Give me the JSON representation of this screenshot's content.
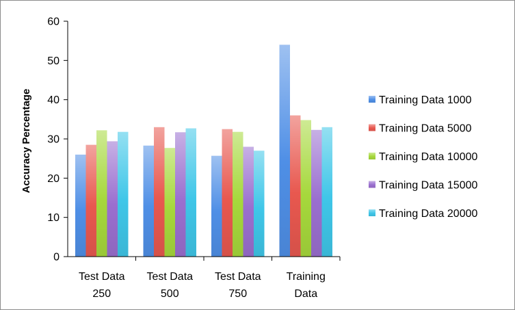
{
  "chart_data": {
    "type": "bar",
    "categories": [
      [
        "Test Data",
        "250"
      ],
      [
        "Test Data",
        "500"
      ],
      [
        "Test Data",
        "750"
      ],
      [
        "Training",
        "Data"
      ]
    ],
    "series": [
      {
        "name": "Training Data 1000",
        "color": "#4f8fe6",
        "values": [
          26.0,
          28.3,
          25.7,
          54.0
        ]
      },
      {
        "name": "Training Data 5000",
        "color": "#e8584f",
        "values": [
          28.5,
          33.0,
          32.5,
          36.0
        ]
      },
      {
        "name": "Training Data 10000",
        "color": "#a6d83c",
        "values": [
          32.2,
          27.7,
          31.8,
          34.8
        ]
      },
      {
        "name": "Training Data 15000",
        "color": "#9a6fcf",
        "values": [
          29.4,
          31.7,
          28.0,
          32.3
        ]
      },
      {
        "name": "Training Data 20000",
        "color": "#3fc6e8",
        "values": [
          31.8,
          32.7,
          27.0,
          33.0
        ]
      }
    ],
    "ylabel": "Accuracy Percentage",
    "ylim": [
      0,
      60
    ],
    "yticks": [
      0,
      10,
      20,
      30,
      40,
      50,
      60
    ],
    "grid": false,
    "legend": "right"
  }
}
